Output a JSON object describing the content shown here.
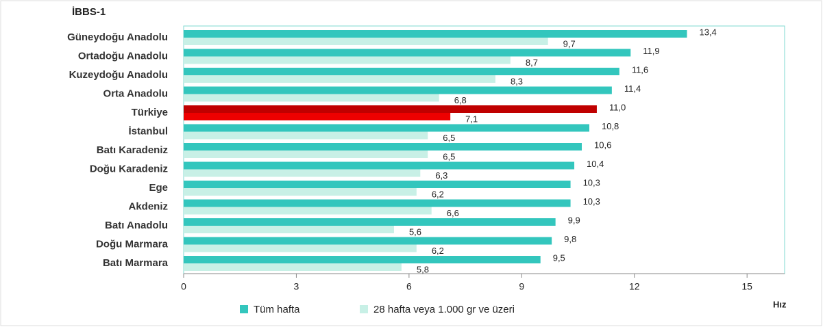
{
  "chart_data": {
    "type": "hbar",
    "title": "İBBS-1",
    "xlabel": "Hız",
    "categories": [
      "Güneydoğu Anadolu",
      "Ortadoğu Anadolu",
      "Kuzeydoğu Anadolu",
      "Orta Anadolu",
      "Türkiye",
      "İstanbul",
      "Batı Karadeniz",
      "Doğu Karadeniz",
      "Ege",
      "Akdeniz",
      "Batı Anadolu",
      "Doğu Marmara",
      "Batı Marmara"
    ],
    "series": [
      {
        "name": "Tüm hafta",
        "color": "#33c6bd",
        "highlight_color": "#c00000",
        "values": [
          13.4,
          11.9,
          11.6,
          11.4,
          11.0,
          10.8,
          10.6,
          10.4,
          10.3,
          10.3,
          9.9,
          9.8,
          9.5
        ],
        "value_labels": [
          "13,4",
          "11,9",
          "11,6",
          "11,4",
          "11,0",
          "10,8",
          "10,6",
          "10,4",
          "10,3",
          "10,3",
          "9,9",
          "9,8",
          "9,5"
        ]
      },
      {
        "name": "28 hafta veya 1.000 gr ve üzeri",
        "color": "#c8f0e6",
        "highlight_color": "#ee0000",
        "values": [
          9.7,
          8.7,
          8.3,
          6.8,
          7.1,
          6.5,
          6.5,
          6.3,
          6.2,
          6.6,
          5.6,
          6.2,
          5.8
        ],
        "value_labels": [
          "9,7",
          "8,7",
          "8,3",
          "6,8",
          "7,1",
          "6,5",
          "6,5",
          "6,3",
          "6,2",
          "6,6",
          "5,6",
          "6,2",
          "5,8"
        ]
      }
    ],
    "highlight": [
      4
    ],
    "xlim": [
      0,
      16
    ],
    "xticks": [
      0,
      3,
      6,
      9,
      12,
      15
    ]
  }
}
